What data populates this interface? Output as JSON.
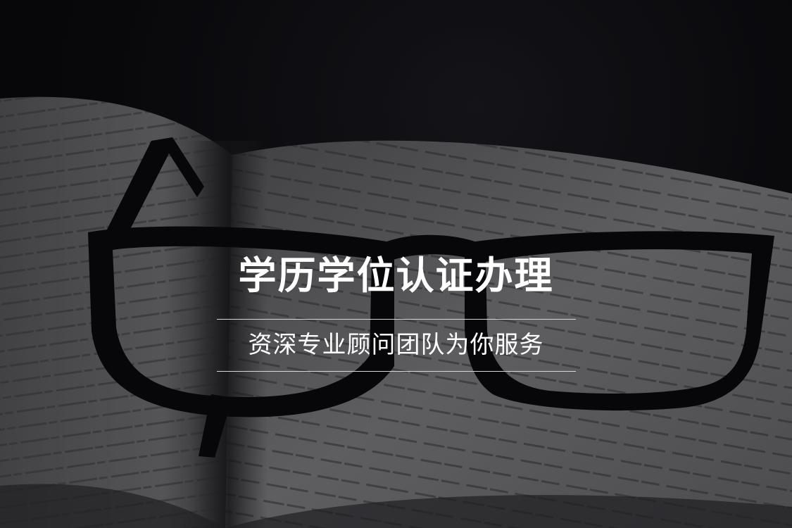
{
  "banner": {
    "title": "学历学位认证办理",
    "subtitle": "资深专业顾问团队为你服务"
  },
  "background": {
    "subject": "open-book-with-eyeglasses",
    "tone": "grayscale",
    "page_color": "#6f6f72",
    "frame_color": "#0b0b0d",
    "backdrop_color": "#0d0d12"
  }
}
